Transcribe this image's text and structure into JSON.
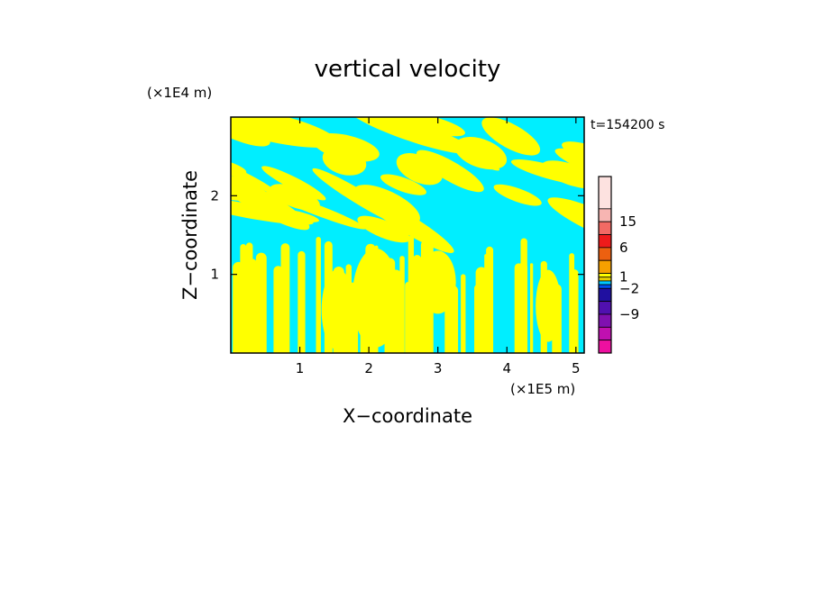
{
  "chart_data": {
    "type": "heatmap",
    "title": "vertical velocity",
    "xlabel": "X−coordinate",
    "ylabel": "Z−coordinate",
    "x_unit": "(×1E5 m)",
    "y_unit": "(×1E4 m)",
    "time_label": "t=154200 s",
    "xlim": [
      0,
      5.12
    ],
    "ylim": [
      0,
      3.0
    ],
    "x_ticks": [
      "1",
      "2",
      "3",
      "4",
      "5"
    ],
    "x_tick_values": [
      1,
      2,
      3,
      4,
      5
    ],
    "y_ticks": [
      "1",
      "2"
    ],
    "y_tick_values": [
      1,
      2
    ],
    "grid": false,
    "field": {
      "description": "binary-appearing contour field: positive (yellow) and negative (cyan) vertical velocity bands",
      "positive_color": "#ffff00",
      "negative_color": "#00eeff"
    },
    "colorbar": {
      "labels": [
        "15",
        "6",
        "1",
        "−2",
        "−9"
      ],
      "colors": [
        "#fde2e0",
        "#f7b5b2",
        "#f26a64",
        "#ee1b1b",
        "#ec6010",
        "#f6a000",
        "#ffff00",
        "#e8d000",
        "#00c8ff",
        "#0050f0",
        "#2010a0",
        "#5010b0",
        "#8010b0",
        "#c010b0",
        "#ee10a0"
      ]
    }
  }
}
